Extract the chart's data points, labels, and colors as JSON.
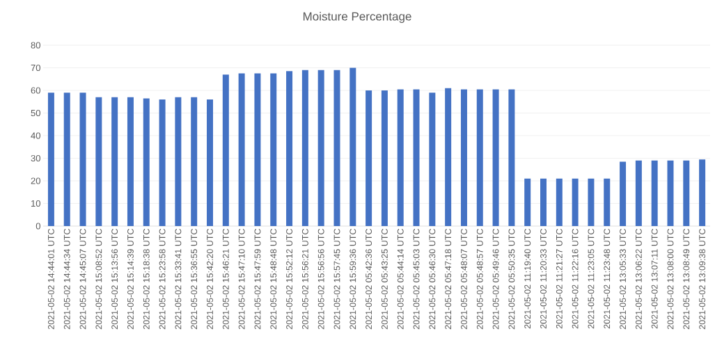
{
  "chart_data": {
    "type": "bar",
    "title": "Moisture Percentage",
    "categories": [
      "2021-05-02 14:44:01 UTC",
      "2021-05-02 14:44:34 UTC",
      "2021-05-02 14:45:07 UTC",
      "2021-05-02 15:08:52 UTC",
      "2021-05-02 15:13:56 UTC",
      "2021-05-02 15:14:39 UTC",
      "2021-05-02 15:18:38 UTC",
      "2021-05-02 15:23:58 UTC",
      "2021-05-02 15:33:41 UTC",
      "2021-05-02 15:36:55 UTC",
      "2021-05-02 15:42:20 UTC",
      "2021-05-02 15:46:21 UTC",
      "2021-05-02 15:47:10 UTC",
      "2021-05-02 15:47:59 UTC",
      "2021-05-02 15:48:48 UTC",
      "2021-05-02 15:52:12 UTC",
      "2021-05-02 15:56:21 UTC",
      "2021-05-02 15:56:56 UTC",
      "2021-05-02 15:57:45 UTC",
      "2021-05-02 15:59:36 UTC",
      "2021-05-02 05:42:36 UTC",
      "2021-05-02 05:43:25 UTC",
      "2021-05-02 05:44:14 UTC",
      "2021-05-02 05:45:03 UTC",
      "2021-05-02 05:46:30 UTC",
      "2021-05-02 05:47:18 UTC",
      "2021-05-02 05:48:07 UTC",
      "2021-05-02 05:48:57 UTC",
      "2021-05-02 05:49:46 UTC",
      "2021-05-02 05:50:35 UTC",
      "2021-05-02 11:19:40 UTC",
      "2021-05-02 11:20:33 UTC",
      "2021-05-02 11:21:27 UTC",
      "2021-05-02 11:22:16 UTC",
      "2021-05-02 11:23:05 UTC",
      "2021-05-02 11:23:48 UTC",
      "2021-05-02 13:05:33 UTC",
      "2021-05-02 13:06:22 UTC",
      "2021-05-02 13:07:11 UTC",
      "2021-05-02 13:08:00 UTC",
      "2021-05-02 13:08:49 UTC",
      "2021-05-02 13:09:38 UTC"
    ],
    "values": [
      59,
      59,
      59,
      57,
      57,
      57,
      56.5,
      56,
      57,
      57,
      56,
      67,
      67.5,
      67.5,
      67.5,
      68.5,
      69,
      69,
      69,
      70,
      60,
      60,
      60.5,
      60.5,
      59,
      61,
      60.5,
      60.5,
      60.5,
      60.5,
      21,
      21,
      21,
      21,
      21,
      21,
      28.5,
      29,
      29,
      29,
      29,
      29.5
    ],
    "color": "#4472c4",
    "ylim": [
      0,
      80
    ],
    "yticks": [
      0,
      10,
      20,
      30,
      40,
      50,
      60,
      70,
      80
    ],
    "grid": "y"
  }
}
